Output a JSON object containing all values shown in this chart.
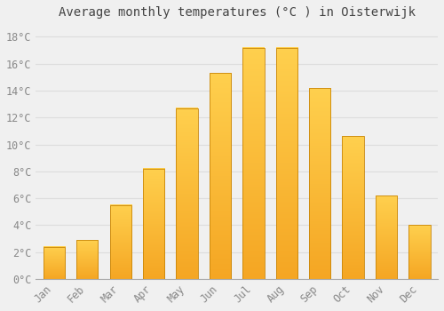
{
  "title": "Average monthly temperatures (°C ) in Oisterwijk",
  "months": [
    "Jan",
    "Feb",
    "Mar",
    "Apr",
    "May",
    "Jun",
    "Jul",
    "Aug",
    "Sep",
    "Oct",
    "Nov",
    "Dec"
  ],
  "values": [
    2.4,
    2.9,
    5.5,
    8.2,
    12.7,
    15.3,
    17.2,
    17.2,
    14.2,
    10.6,
    6.2,
    4.0
  ],
  "bar_color_bottom": "#F5A623",
  "bar_color_top": "#FFD04E",
  "bar_edge_color": "#C8860A",
  "background_color": "#F0F0F0",
  "grid_color": "#DDDDDD",
  "ylim": [
    0,
    19
  ],
  "yticks": [
    0,
    2,
    4,
    6,
    8,
    10,
    12,
    14,
    16,
    18
  ],
  "title_fontsize": 10,
  "tick_fontsize": 8.5,
  "title_color": "#444444",
  "tick_color": "#888888",
  "bar_width": 0.65
}
